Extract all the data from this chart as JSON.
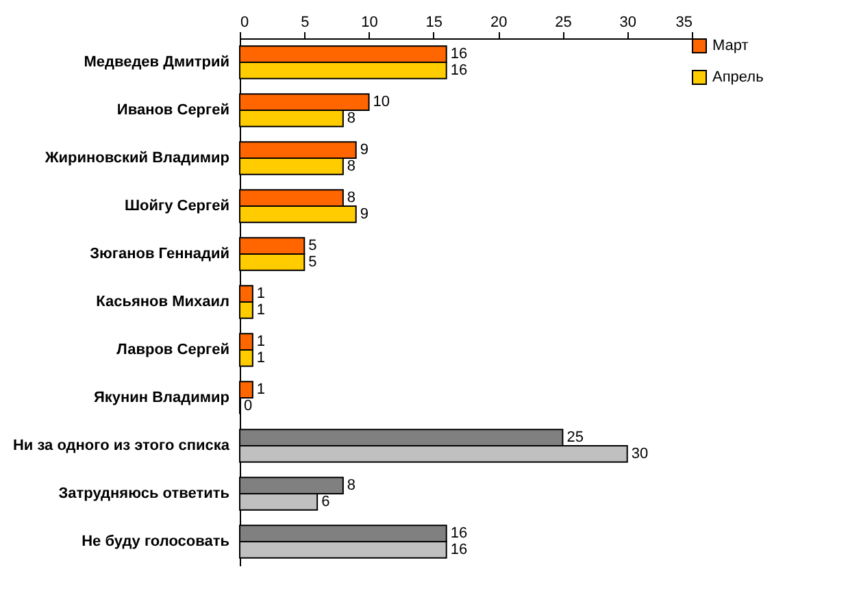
{
  "chart_data": {
    "type": "bar",
    "orientation": "horizontal",
    "categories": [
      "Медведев Дмитрий",
      "Иванов Сергей",
      "Жириновский Владимир",
      "Шойгу Сергей",
      "Зюганов Геннадий",
      "Касьянов Михаил",
      "Лавров Сергей",
      "Якунин Владимир",
      "Ни за одного из этого списка",
      "Затрудняюсь ответить",
      "Не буду голосовать"
    ],
    "series": [
      {
        "name": "Март",
        "color": "#ff6600",
        "colors": [
          "#ff6600",
          "#ff6600",
          "#ff6600",
          "#ff6600",
          "#ff6600",
          "#ff6600",
          "#ff6600",
          "#ff6600",
          "#808080",
          "#808080",
          "#808080"
        ],
        "values": [
          16,
          10,
          9,
          8,
          5,
          1,
          1,
          1,
          25,
          8,
          16
        ]
      },
      {
        "name": "Апрель",
        "color": "#ffcc00",
        "colors": [
          "#ffcc00",
          "#ffcc00",
          "#ffcc00",
          "#ffcc00",
          "#ffcc00",
          "#ffcc00",
          "#ffcc00",
          "#ffcc00",
          "#c0c0c0",
          "#c0c0c0",
          "#c0c0c0"
        ],
        "values": [
          16,
          8,
          8,
          9,
          5,
          1,
          1,
          0,
          30,
          6,
          16
        ]
      }
    ],
    "xlim": [
      0,
      35
    ],
    "xticks": [
      0,
      5,
      10,
      15,
      20,
      25,
      30,
      35
    ],
    "data_labels": true,
    "legend": "right"
  }
}
